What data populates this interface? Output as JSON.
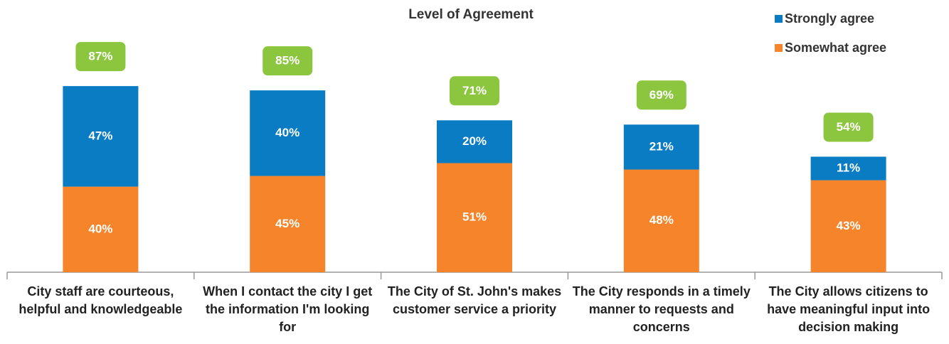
{
  "chart_data": {
    "type": "stacked_bar",
    "title": "Level of Agreement",
    "categories": [
      "City staff are courteous, helpful and knowledgeable",
      "When I contact the city I get the information I'm looking for",
      "The City of St. John's makes customer service a priority",
      "The City responds in a timely manner to requests and concerns",
      "The City allows citizens to have meaningful input into decision making"
    ],
    "series": [
      {
        "name": "Somewhat agree",
        "color": "#f5842a",
        "values": [
          40,
          45,
          51,
          48,
          43
        ],
        "value_labels": [
          "40%",
          "45%",
          "51%",
          "48%",
          "43%"
        ]
      },
      {
        "name": "Strongly agree",
        "color": "#0a7cc4",
        "values": [
          47,
          40,
          20,
          21,
          11
        ],
        "value_labels": [
          "47%",
          "40%",
          "20%",
          "21%",
          "11%"
        ]
      }
    ],
    "totals": [
      87,
      85,
      71,
      69,
      54
    ],
    "total_labels": [
      "87%",
      "85%",
      "71%",
      "69%",
      "54%"
    ],
    "total_color": "#8cc63f",
    "ylim": [
      0,
      100
    ],
    "legend": "top-right"
  }
}
